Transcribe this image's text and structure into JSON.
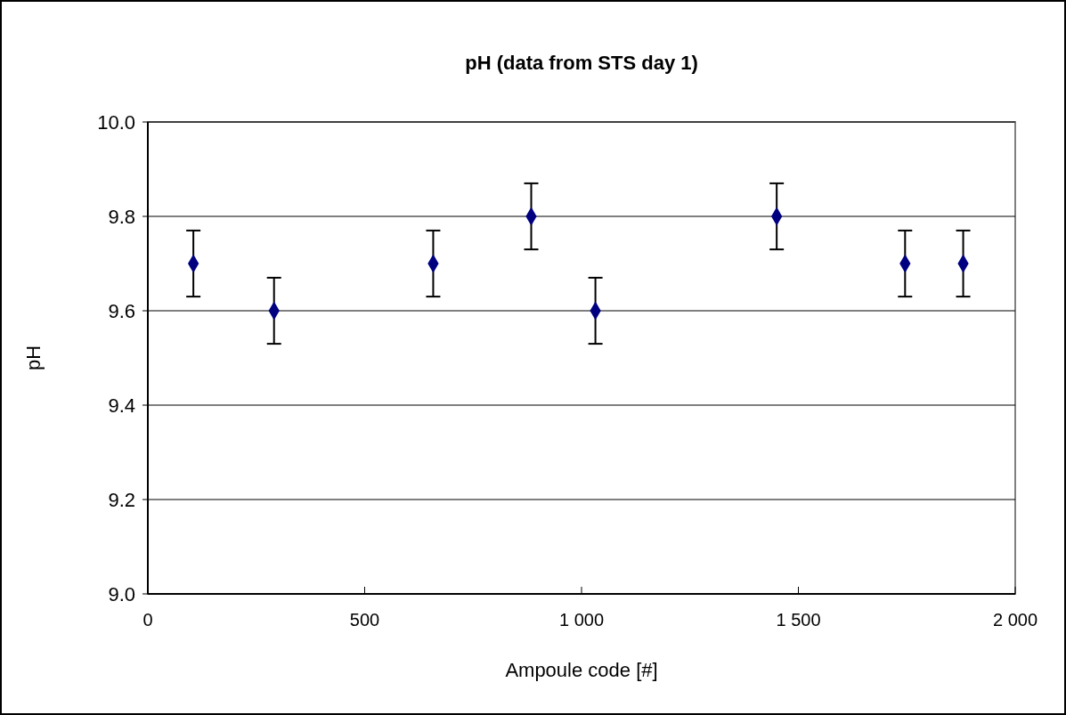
{
  "chart_data": {
    "type": "scatter",
    "title": "pH  (data from STS day 1)",
    "xlabel": "Ampoule code [#]",
    "ylabel": "pH",
    "series": [
      {
        "color": "#000080",
        "x": [
          105,
          291,
          658,
          884,
          1032,
          1450,
          1746,
          1880
        ],
        "values": [
          9.7,
          9.6,
          9.7,
          9.8,
          9.6,
          9.8,
          9.7,
          9.7
        ],
        "errors": [
          0.07,
          0.07,
          0.07,
          0.07,
          0.07,
          0.07,
          0.07,
          0.07
        ]
      }
    ],
    "xlim": [
      0,
      2000
    ],
    "xticks": [
      0,
      {
        "value": 500,
        "label": "500"
      },
      {
        "value": 1000,
        "label": "1 000"
      },
      {
        "value": 1500,
        "label": "1 500"
      },
      {
        "value": 2000,
        "label": "2 000"
      }
    ],
    "ylim": [
      9.0,
      10.0
    ],
    "yticks": [
      {
        "value": 9.0,
        "label": "9.0"
      },
      {
        "value": 9.2,
        "label": "9.2"
      },
      {
        "value": 9.4,
        "label": "9.4"
      },
      {
        "value": 9.6,
        "label": "9.6"
      },
      {
        "value": 9.8,
        "label": "9.8"
      },
      {
        "value": 10.0,
        "label": "10.0"
      }
    ],
    "grid": "y",
    "marker": "diamond"
  }
}
